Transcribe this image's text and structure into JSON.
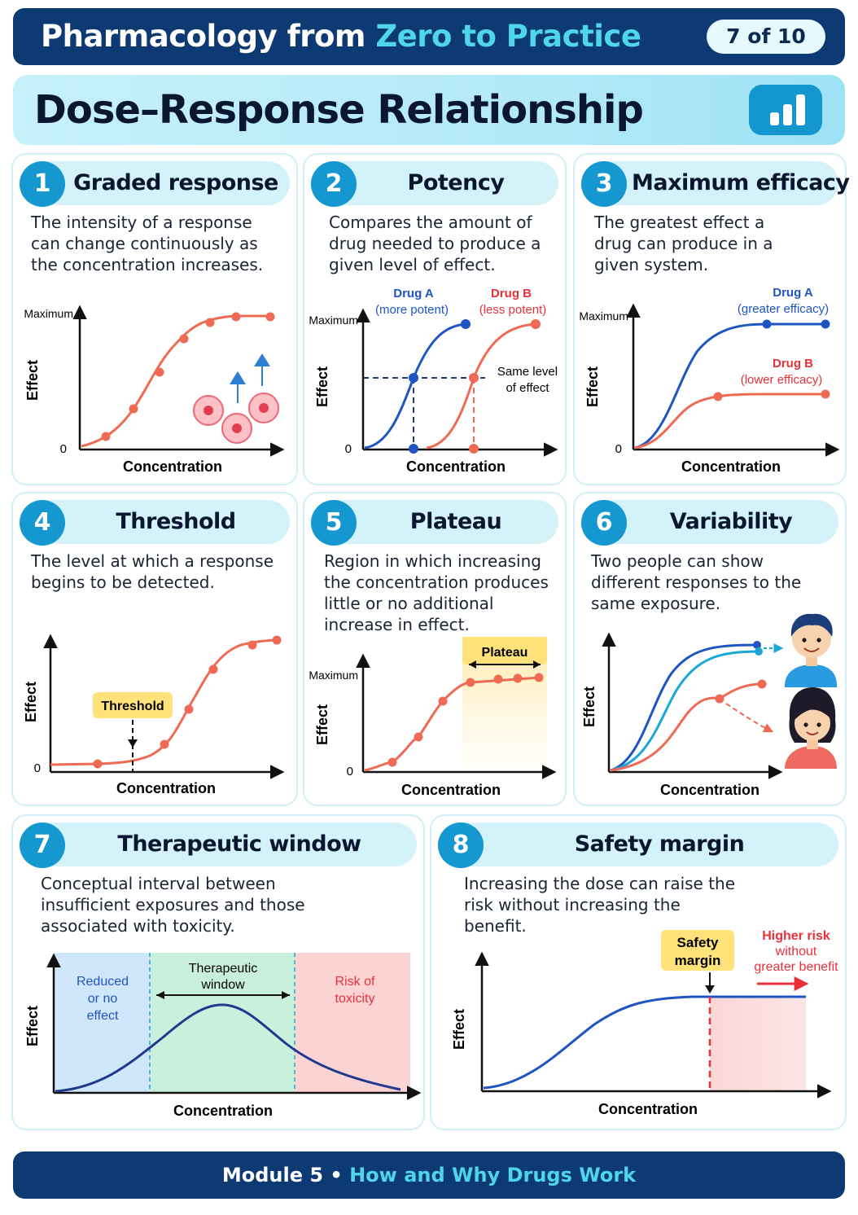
{
  "header": {
    "title_main": "Pharmacology from",
    "title_accent": "Zero to Practice",
    "page_indicator": "7 of 10"
  },
  "title": "Dose–Response Relationship",
  "title_icon": "bar-chart-icon",
  "cards": {
    "c1": {
      "number": "1",
      "title": "Graded response",
      "description": "The intensity of a response can change continuously as the concentration increases.",
      "y_axis": "Effect",
      "x_axis": "Concentration",
      "y_max_label": "Maximum",
      "y_zero_label": "0",
      "illustration": "receptor-cells-icon"
    },
    "c2": {
      "number": "2",
      "title": "Potency",
      "description": "Compares the amount of drug needed to produce a given level of effect.",
      "y_axis": "Effect",
      "x_axis": "Concentration",
      "y_max_label": "Maximum",
      "y_zero_label": "0",
      "drug_a": "Drug A",
      "drug_a_note": "(more potent)",
      "drug_b": "Drug B",
      "drug_b_note": "(less potent)",
      "same_level_1": "Same level",
      "same_level_2": "of effect"
    },
    "c3": {
      "number": "3",
      "title": "Maximum efficacy",
      "description": "The greatest effect a drug can produce in a given system.",
      "y_axis": "Effect",
      "x_axis": "Concentration",
      "y_max_label": "Maximum",
      "y_zero_label": "0",
      "drug_a": "Drug A",
      "drug_a_note": "(greater efficacy)",
      "drug_b": "Drug B",
      "drug_b_note": "(lower efficacy)"
    },
    "c4": {
      "number": "4",
      "title": "Threshold",
      "description": "The level at which a response begins to be detected.",
      "y_axis": "Effect",
      "x_axis": "Concentration",
      "y_zero_label": "0",
      "threshold_label": "Threshold"
    },
    "c5": {
      "number": "5",
      "title": "Plateau",
      "description": "Region in which increasing the concentration produces little or no additional increase in effect.",
      "y_axis": "Effect",
      "x_axis": "Concentration",
      "y_max_label": "Maximum",
      "y_zero_label": "0",
      "plateau_label": "Plateau"
    },
    "c6": {
      "number": "6",
      "title": "Variability",
      "description": "Two people can show different responses to the same exposure.",
      "y_axis": "Effect",
      "x_axis": "Concentration",
      "person_1": "boy-face-icon",
      "person_2": "girl-face-icon"
    },
    "c7": {
      "number": "7",
      "title": "Therapeutic window",
      "description": "Conceptual interval between insufficient exposures and those associated with toxicity.",
      "y_axis": "Effect",
      "x_axis": "Concentration",
      "zone_low_1": "Reduced",
      "zone_low_2": "or no",
      "zone_low_3": "effect",
      "zone_mid_1": "Therapeutic",
      "zone_mid_2": "window",
      "zone_high_1": "Risk of",
      "zone_high_2": "toxicity"
    },
    "c8": {
      "number": "8",
      "title": "Safety margin",
      "description": "Increasing the dose can raise the risk without increasing the benefit.",
      "y_axis": "Effect",
      "x_axis": "Concentration",
      "margin_1": "Safety",
      "margin_2": "margin",
      "risk_1": "Higher risk",
      "risk_2": "without",
      "risk_3": "greater benefit"
    }
  },
  "colors": {
    "navy": "#0d3a73",
    "accent_cyan": "#4fd5ec",
    "badge_blue": "#1597d0",
    "curve_red": "#ef6a55",
    "curve_blue": "#1f55c2",
    "label_yellow": "#ffe27a"
  },
  "footer": {
    "module": "Module 5 •",
    "module_title": "How and Why Drugs Work"
  }
}
